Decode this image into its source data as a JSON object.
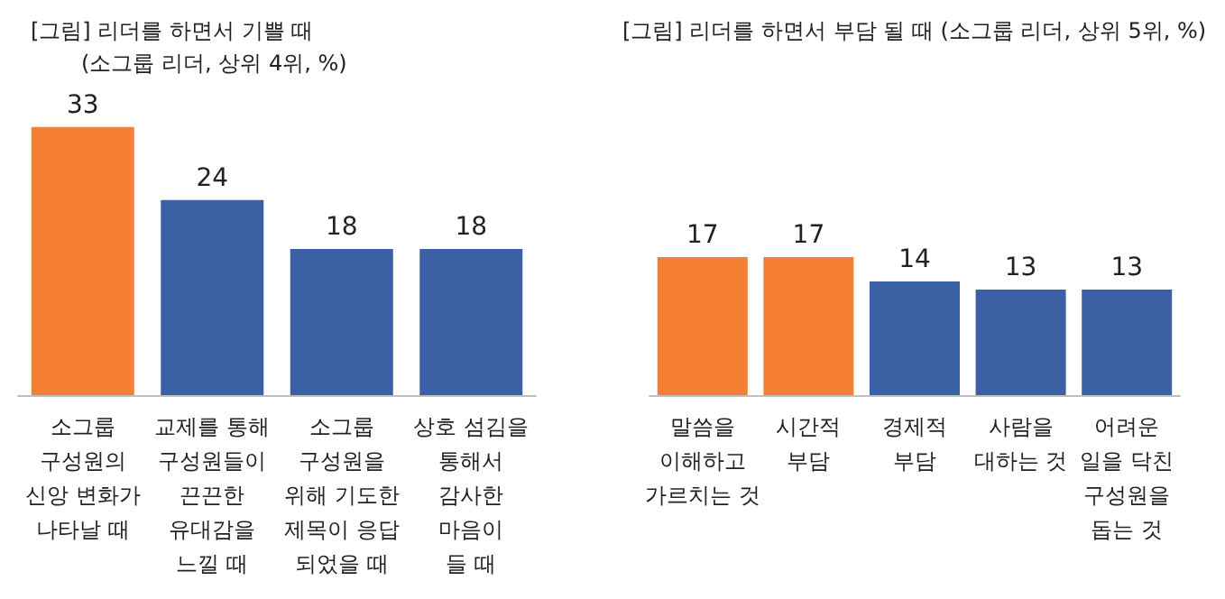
{
  "chart_data": [
    {
      "type": "bar",
      "title": "[그림] 리더를 하면서 기쁠 때",
      "subtitle": "(소그룹 리더, 상위 4위, %)",
      "categories": [
        "소그룹\n구성원의\n신앙 변화가\n나타날 때",
        "교제를 통해\n구성원들이\n끈끈한\n유대감을\n느낄 때",
        "소그룹\n구성원을\n위해 기도한\n제목이 응답\n되었을 때",
        "상호 섬김을\n통해서\n감사한\n마음이\n들 때"
      ],
      "values": [
        33,
        24,
        18,
        18
      ],
      "colors": [
        "#f57f35",
        "#3c60a4",
        "#3c60a4",
        "#3c60a4"
      ],
      "data_labels": true
    },
    {
      "type": "bar",
      "title": "[그림] 리더를 하면서 부담 될 때 (소그룹 리더, 상위 5위, %)",
      "categories": [
        "말씀을\n이해하고\n가르치는 것",
        "시간적\n부담",
        "경제적\n부담",
        "사람을\n대하는 것",
        "어려운\n일을 닥친\n구성원을\n돕는 것"
      ],
      "values": [
        17,
        17,
        14,
        13,
        13
      ],
      "colors": [
        "#f57f35",
        "#f57f35",
        "#3c60a4",
        "#3c60a4",
        "#3c60a4"
      ],
      "data_labels": true
    }
  ]
}
